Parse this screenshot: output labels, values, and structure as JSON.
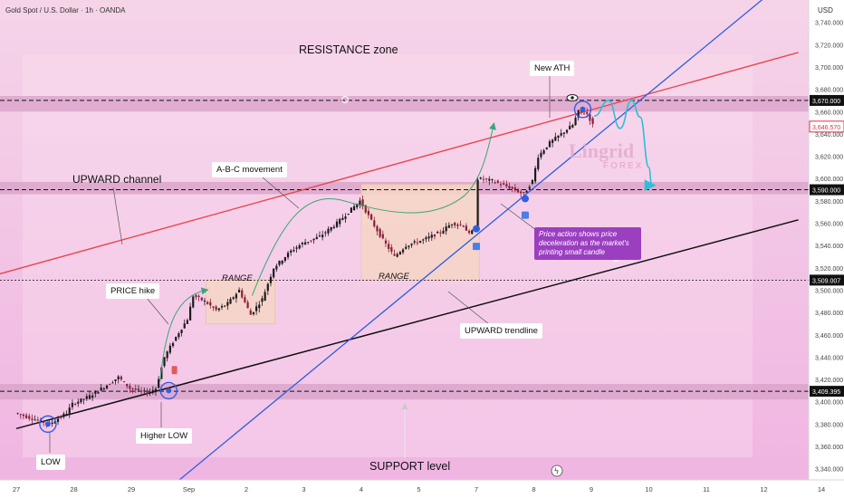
{
  "header": {
    "symbol": "Gold Spot / U.S. Dollar · 1h · OANDA",
    "currency": "USD"
  },
  "watermark": {
    "line1": "Lingrid",
    "line2": "FOREX"
  },
  "colors": {
    "background": "#f7d3ea",
    "resistance_line": "#e8474f",
    "trendline": "#2f5fe0",
    "support_line": "#111111",
    "up_candle": "#1b1b1b",
    "abc_arrow": "#3aa57a",
    "projection": "#2bc0d8",
    "callout": "#9b3fc0",
    "zone": "#d9a3c9"
  },
  "chart_data": {
    "type": "candlestick",
    "y_axis": {
      "min": 3330,
      "max": 3760,
      "ticks": [
        3340,
        3360,
        3380,
        3400,
        3420,
        3440,
        3460,
        3480,
        3500,
        3520,
        3540,
        3560,
        3580,
        3600,
        3620,
        3640,
        3660,
        3680,
        3700,
        3720,
        3740
      ]
    },
    "x_axis": {
      "ticks": [
        "27",
        "28",
        "29",
        "Sep",
        "2",
        "3",
        "4",
        "5",
        "7",
        "8",
        "9",
        "10",
        "11",
        "12",
        "14"
      ]
    },
    "price_tags": [
      {
        "label": "3,670.000",
        "value": 3670,
        "style": "dark"
      },
      {
        "label": "3,646.570",
        "value": 3646.57,
        "style": "red"
      },
      {
        "label": "3,590.000",
        "value": 3590,
        "style": "dark"
      },
      {
        "label": "3,509.007",
        "value": 3509,
        "style": "dark"
      },
      {
        "label": "3,409.395",
        "value": 3409.4,
        "style": "dark"
      }
    ],
    "price_path": [
      [
        0,
        3390
      ],
      [
        0.3,
        3385
      ],
      [
        0.6,
        3380
      ],
      [
        0.9,
        3390
      ],
      [
        1.0,
        3398
      ],
      [
        1.3,
        3405
      ],
      [
        1.6,
        3415
      ],
      [
        1.8,
        3422
      ],
      [
        2.0,
        3412
      ],
      [
        2.3,
        3408
      ],
      [
        2.45,
        3412
      ],
      [
        2.6,
        3440
      ],
      [
        2.8,
        3458
      ],
      [
        3.0,
        3474
      ],
      [
        3.1,
        3495
      ],
      [
        3.3,
        3490
      ],
      [
        3.5,
        3482
      ],
      [
        3.7,
        3488
      ],
      [
        3.9,
        3500
      ],
      [
        4.1,
        3478
      ],
      [
        4.3,
        3492
      ],
      [
        4.5,
        3520
      ],
      [
        4.8,
        3535
      ],
      [
        5.0,
        3542
      ],
      [
        5.3,
        3548
      ],
      [
        5.6,
        3560
      ],
      [
        5.9,
        3575
      ],
      [
        6.0,
        3580
      ],
      [
        6.2,
        3562
      ],
      [
        6.4,
        3545
      ],
      [
        6.6,
        3530
      ],
      [
        6.8,
        3540
      ],
      [
        7.1,
        3545
      ],
      [
        7.4,
        3552
      ],
      [
        7.6,
        3560
      ],
      [
        7.8,
        3558
      ],
      [
        7.9,
        3550
      ],
      [
        8.0,
        3555
      ],
      [
        8.05,
        3600
      ],
      [
        8.3,
        3598
      ],
      [
        8.6,
        3592
      ],
      [
        8.85,
        3586
      ],
      [
        9.0,
        3598
      ],
      [
        9.1,
        3620
      ],
      [
        9.3,
        3632
      ],
      [
        9.5,
        3640
      ],
      [
        9.7,
        3648
      ],
      [
        9.8,
        3660
      ],
      [
        9.95,
        3658
      ],
      [
        10.05,
        3648
      ]
    ],
    "projection_path": [
      [
        10.05,
        3656
      ],
      [
        10.3,
        3670
      ],
      [
        10.5,
        3645
      ],
      [
        10.7,
        3670
      ],
      [
        10.85,
        3655
      ],
      [
        11.0,
        3610
      ],
      [
        11.05,
        3594
      ]
    ],
    "levels": [
      3670,
      3590,
      3509,
      3409.4
    ],
    "zones": [
      {
        "name": "resistance",
        "from": 3660,
        "to": 3674
      },
      {
        "name": "mid",
        "from": 3586,
        "to": 3597
      },
      {
        "name": "support",
        "from": 3402,
        "to": 3416
      }
    ],
    "channel_lines": {
      "resistance": [
        [
          -0.4,
          3513
        ],
        [
          13.6,
          3713
        ]
      ],
      "support": [
        [
          0,
          3376
        ],
        [
          13.6,
          3563
        ]
      ],
      "trendline": [
        [
          2.6,
          3320
        ],
        [
          13.2,
          3770
        ]
      ]
    },
    "range_boxes": [
      {
        "label": "RANGE",
        "x_from": 3.3,
        "x_to": 4.5,
        "y_from": 3470,
        "y_to": 3509
      },
      {
        "label": "RANGE",
        "x_from": 6.0,
        "x_to": 8.05,
        "y_from": 3509,
        "y_to": 3595
      }
    ],
    "pivots": [
      {
        "label": "LOW",
        "x": 0.55,
        "value": 3380
      },
      {
        "label": "Higher LOW",
        "x": 2.65,
        "value": 3410
      },
      {
        "label": "New ATH",
        "x": 9.85,
        "value": 3662
      }
    ],
    "labels": {
      "resistance_zone": "RESISTANCE zone",
      "support_level": "SUPPORT level",
      "upward_channel": "UPWARD channel",
      "abc_movement": "A-B-C movement",
      "price_hike": "PRICE hike",
      "upward_trendline": "UPWARD trendline",
      "callout": "Price action shows price deceleration as the market's printing small candle"
    }
  }
}
